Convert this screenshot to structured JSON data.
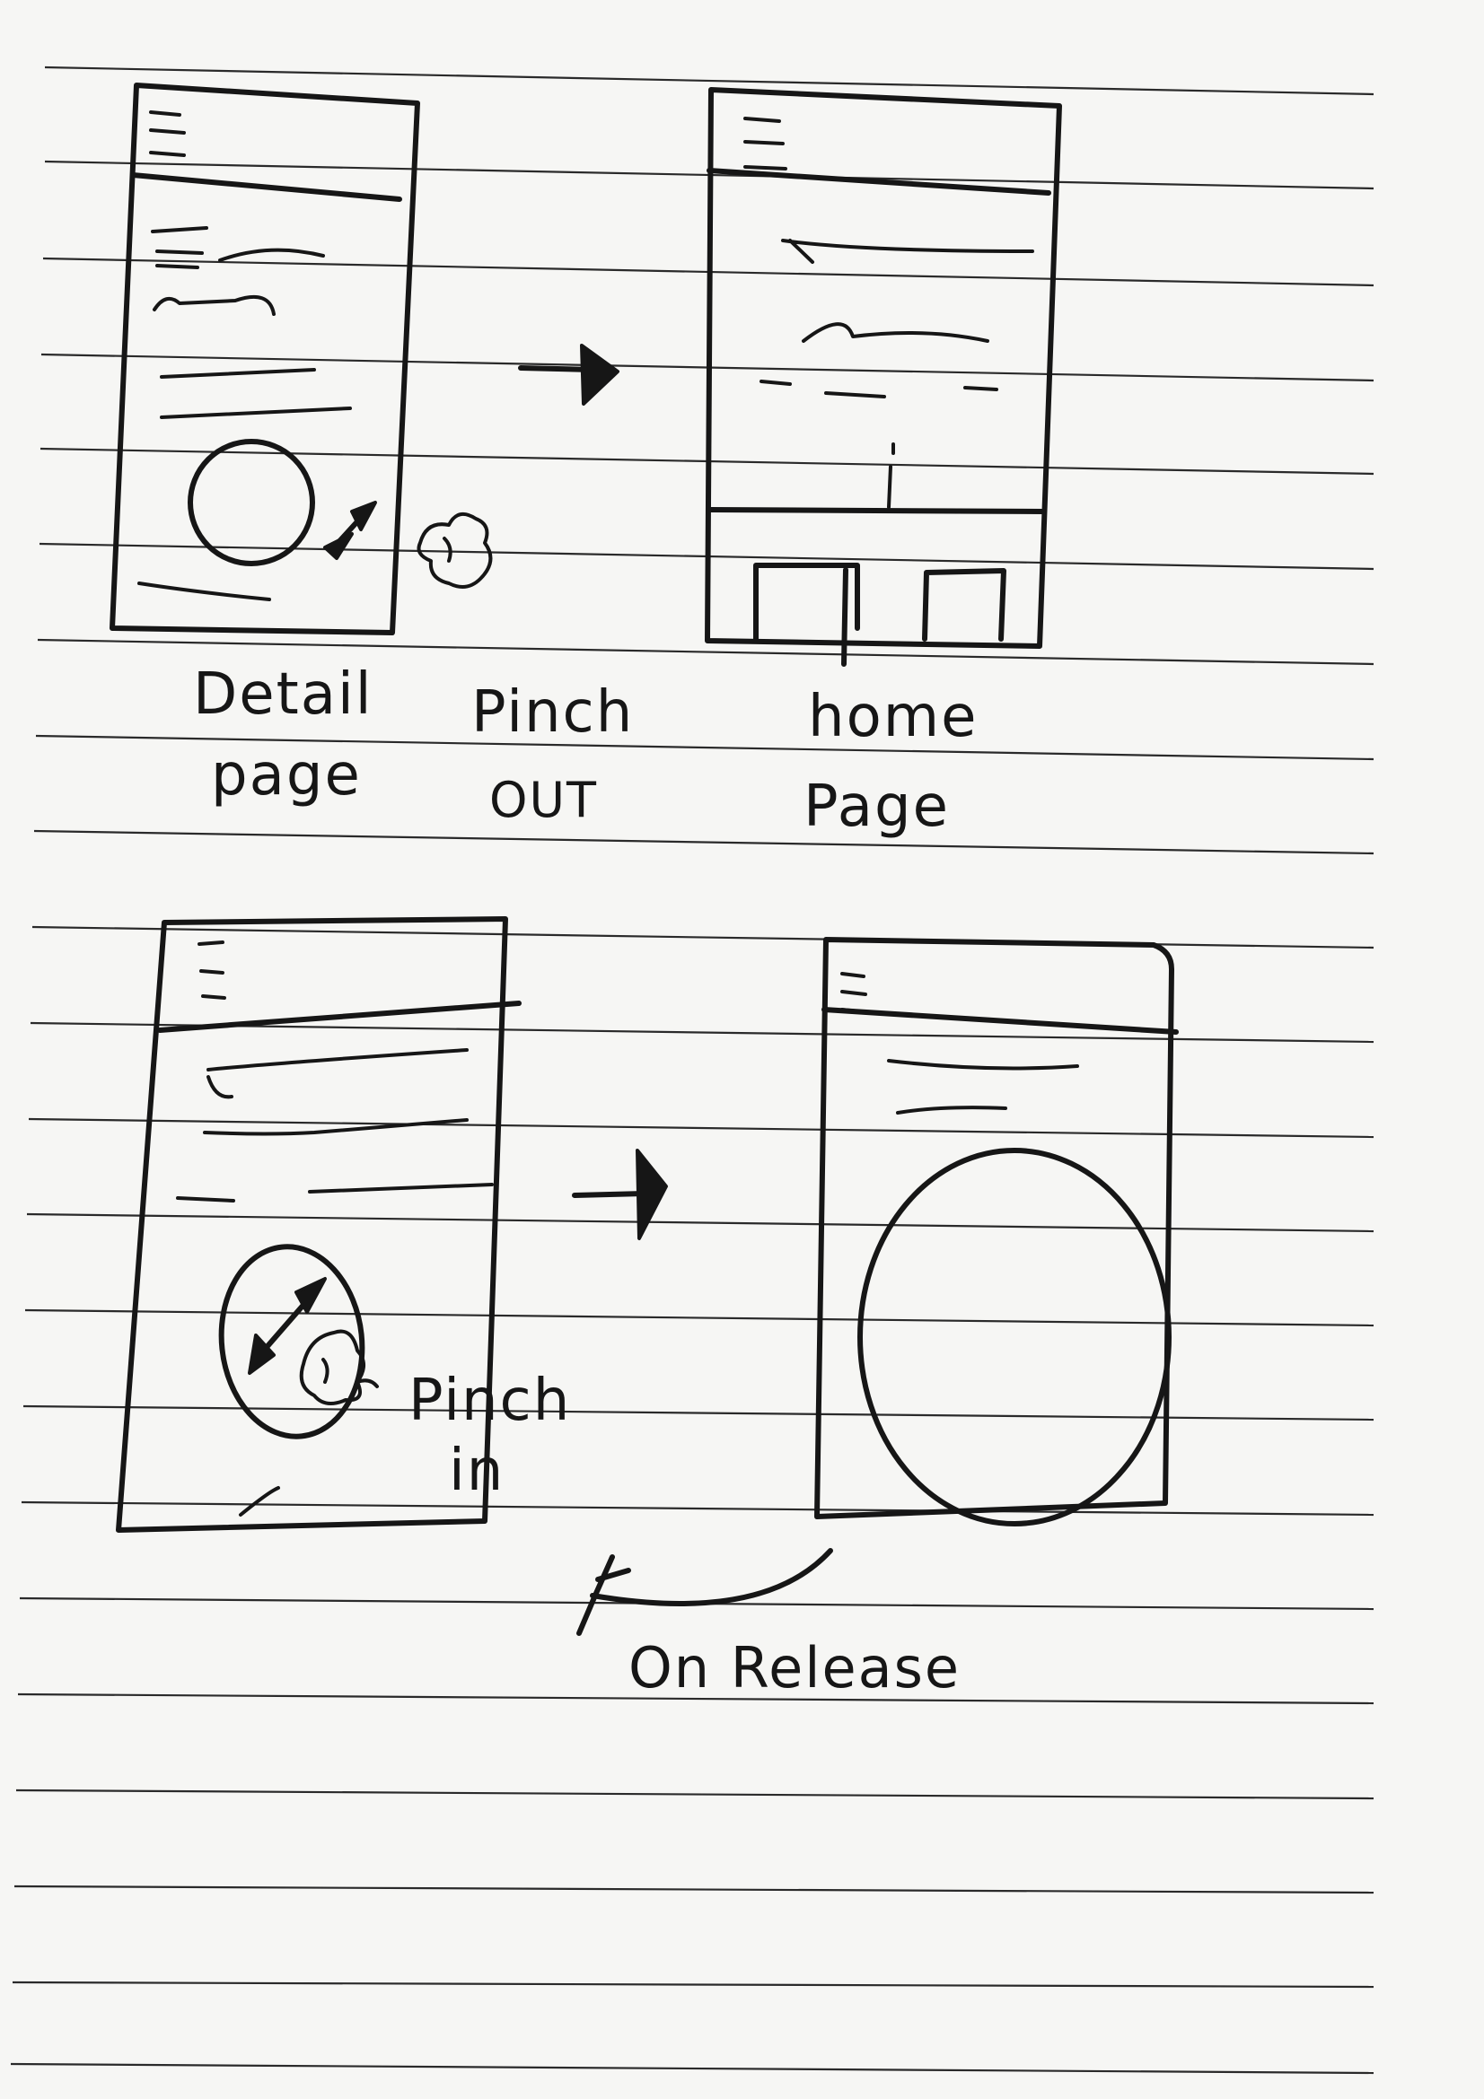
{
  "labels": {
    "detail_page": [
      "Detail",
      "page"
    ],
    "pinch_out": [
      "Pinch",
      "OUT"
    ],
    "home_page": [
      "home",
      "Page"
    ],
    "pinch_in": [
      "Pinch",
      "in"
    ],
    "on_release": "On Release"
  },
  "icons": [
    "menu-icon",
    "expand-arrow-icon",
    "hand-gesture-icon",
    "right-arrow-icon",
    "curved-arrow-icon"
  ]
}
